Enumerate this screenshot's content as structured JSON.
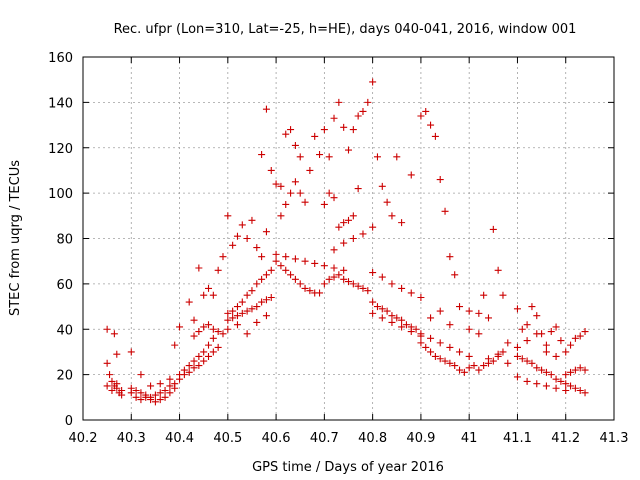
{
  "chart_data": {
    "type": "scatter",
    "title": "Rec. ufpr (Lon=310, Lat=-25, h=HE), days 040-041, 2016, window 001",
    "xlabel": "GPS time / Days of year 2016",
    "ylabel": "STEC from uqrg / TECUs",
    "xlim": [
      40.2,
      41.3
    ],
    "ylim": [
      0,
      160
    ],
    "x_ticks": [
      "40.2",
      "40.3",
      "40.4",
      "40.5",
      "40.6",
      "40.7",
      "40.8",
      "40.9",
      "41",
      "41.1",
      "41.2",
      "41.3"
    ],
    "y_ticks": [
      "0",
      "20",
      "40",
      "60",
      "80",
      "100",
      "120",
      "140",
      "160"
    ],
    "grid": true,
    "marker": "plus",
    "color": "#cc0000",
    "series": [
      {
        "points": [
          [
            40.25,
            40
          ],
          [
            40.265,
            38
          ],
          [
            40.27,
            29
          ],
          [
            40.3,
            30
          ],
          [
            40.25,
            25
          ],
          [
            40.255,
            20
          ],
          [
            40.26,
            17
          ],
          [
            40.265,
            15
          ],
          [
            40.27,
            14
          ],
          [
            40.275,
            12
          ],
          [
            40.28,
            13
          ],
          [
            40.25,
            15
          ],
          [
            40.26,
            13
          ],
          [
            40.27,
            16
          ],
          [
            40.28,
            11
          ],
          [
            40.3,
            12
          ],
          [
            40.31,
            10
          ],
          [
            40.32,
            9
          ],
          [
            40.33,
            10
          ],
          [
            40.34,
            9
          ],
          [
            40.35,
            8
          ],
          [
            40.36,
            9
          ],
          [
            40.37,
            10
          ],
          [
            40.38,
            12
          ],
          [
            40.39,
            14
          ],
          [
            40.3,
            14
          ],
          [
            40.31,
            13
          ],
          [
            40.32,
            12
          ],
          [
            40.33,
            11
          ],
          [
            40.34,
            10
          ],
          [
            40.35,
            11
          ],
          [
            40.36,
            12
          ],
          [
            40.37,
            13
          ],
          [
            40.38,
            15
          ],
          [
            40.39,
            16
          ],
          [
            40.32,
            20
          ],
          [
            40.34,
            15
          ],
          [
            40.36,
            16
          ],
          [
            40.38,
            18
          ],
          [
            40.39,
            33
          ],
          [
            40.4,
            41
          ],
          [
            40.4,
            20
          ],
          [
            40.41,
            22
          ],
          [
            40.42,
            24
          ],
          [
            40.43,
            26
          ],
          [
            40.44,
            28
          ],
          [
            40.45,
            30
          ],
          [
            40.46,
            33
          ],
          [
            40.47,
            36
          ],
          [
            40.4,
            18
          ],
          [
            40.41,
            20
          ],
          [
            40.42,
            21
          ],
          [
            40.43,
            23
          ],
          [
            40.44,
            24
          ],
          [
            40.45,
            26
          ],
          [
            40.46,
            28
          ],
          [
            40.47,
            30
          ],
          [
            40.48,
            32
          ],
          [
            40.42,
            52
          ],
          [
            40.43,
            44
          ],
          [
            40.44,
            67
          ],
          [
            40.45,
            55
          ],
          [
            40.46,
            58
          ],
          [
            40.47,
            55
          ],
          [
            40.48,
            66
          ],
          [
            40.49,
            72
          ],
          [
            40.43,
            37
          ],
          [
            40.44,
            39
          ],
          [
            40.45,
            41
          ],
          [
            40.46,
            42
          ],
          [
            40.47,
            40
          ],
          [
            40.48,
            39
          ],
          [
            40.49,
            38
          ],
          [
            40.5,
            90
          ],
          [
            40.51,
            77
          ],
          [
            40.52,
            81
          ],
          [
            40.53,
            86
          ],
          [
            40.54,
            80
          ],
          [
            40.55,
            88
          ],
          [
            40.56,
            76
          ],
          [
            40.57,
            72
          ],
          [
            40.58,
            83
          ],
          [
            40.5,
            47
          ],
          [
            40.51,
            48
          ],
          [
            40.52,
            50
          ],
          [
            40.53,
            52
          ],
          [
            40.54,
            55
          ],
          [
            40.55,
            57
          ],
          [
            40.56,
            60
          ],
          [
            40.57,
            62
          ],
          [
            40.58,
            64
          ],
          [
            40.59,
            66
          ],
          [
            40.5,
            44
          ],
          [
            40.51,
            45
          ],
          [
            40.52,
            46
          ],
          [
            40.53,
            47
          ],
          [
            40.54,
            48
          ],
          [
            40.55,
            49
          ],
          [
            40.56,
            50
          ],
          [
            40.57,
            52
          ],
          [
            40.58,
            53
          ],
          [
            40.59,
            54
          ],
          [
            40.5,
            40
          ],
          [
            40.52,
            42
          ],
          [
            40.54,
            38
          ],
          [
            40.56,
            43
          ],
          [
            40.58,
            46
          ],
          [
            40.57,
            117
          ],
          [
            40.58,
            137
          ],
          [
            40.59,
            110
          ],
          [
            40.6,
            104
          ],
          [
            40.61,
            103
          ],
          [
            40.62,
            126
          ],
          [
            40.63,
            128
          ],
          [
            40.64,
            121
          ],
          [
            40.65,
            116
          ],
          [
            40.6,
            70
          ],
          [
            40.61,
            68
          ],
          [
            40.62,
            66
          ],
          [
            40.63,
            64
          ],
          [
            40.64,
            62
          ],
          [
            40.65,
            60
          ],
          [
            40.66,
            58
          ],
          [
            40.67,
            57
          ],
          [
            40.68,
            56
          ],
          [
            40.69,
            56
          ],
          [
            40.6,
            73
          ],
          [
            40.62,
            72
          ],
          [
            40.64,
            71
          ],
          [
            40.66,
            70
          ],
          [
            40.68,
            69
          ],
          [
            40.7,
            68
          ],
          [
            40.72,
            67
          ],
          [
            40.74,
            66
          ],
          [
            40.61,
            90
          ],
          [
            40.62,
            95
          ],
          [
            40.63,
            100
          ],
          [
            40.64,
            105
          ],
          [
            40.65,
            100
          ],
          [
            40.66,
            96
          ],
          [
            40.67,
            110
          ],
          [
            40.68,
            125
          ],
          [
            40.69,
            117
          ],
          [
            40.7,
            128
          ],
          [
            40.71,
            116
          ],
          [
            40.72,
            133
          ],
          [
            40.73,
            140
          ],
          [
            40.74,
            129
          ],
          [
            40.75,
            119
          ],
          [
            40.76,
            128
          ],
          [
            40.77,
            134
          ],
          [
            40.7,
            95
          ],
          [
            40.71,
            100
          ],
          [
            40.72,
            98
          ],
          [
            40.73,
            85
          ],
          [
            40.74,
            87
          ],
          [
            40.75,
            88
          ],
          [
            40.76,
            90
          ],
          [
            40.77,
            102
          ],
          [
            40.7,
            60
          ],
          [
            40.71,
            62
          ],
          [
            40.72,
            63
          ],
          [
            40.73,
            64
          ],
          [
            40.74,
            62
          ],
          [
            40.75,
            61
          ],
          [
            40.76,
            60
          ],
          [
            40.77,
            59
          ],
          [
            40.78,
            58
          ],
          [
            40.79,
            57
          ],
          [
            40.72,
            75
          ],
          [
            40.74,
            78
          ],
          [
            40.76,
            80
          ],
          [
            40.78,
            82
          ],
          [
            40.8,
            85
          ],
          [
            40.78,
            136
          ],
          [
            40.79,
            140
          ],
          [
            40.8,
            149
          ],
          [
            40.81,
            116
          ],
          [
            40.82,
            103
          ],
          [
            40.83,
            96
          ],
          [
            40.84,
            90
          ],
          [
            40.85,
            116
          ],
          [
            40.86,
            87
          ],
          [
            40.8,
            52
          ],
          [
            40.81,
            50
          ],
          [
            40.82,
            49
          ],
          [
            40.83,
            48
          ],
          [
            40.84,
            46
          ],
          [
            40.85,
            45
          ],
          [
            40.86,
            44
          ],
          [
            40.87,
            42
          ],
          [
            40.88,
            41
          ],
          [
            40.89,
            40
          ],
          [
            40.8,
            47
          ],
          [
            40.82,
            45
          ],
          [
            40.84,
            43
          ],
          [
            40.86,
            41
          ],
          [
            40.88,
            39
          ],
          [
            40.9,
            37
          ],
          [
            40.8,
            65
          ],
          [
            40.82,
            63
          ],
          [
            40.84,
            60
          ],
          [
            40.86,
            58
          ],
          [
            40.88,
            56
          ],
          [
            40.9,
            54
          ],
          [
            40.88,
            108
          ],
          [
            40.9,
            134
          ],
          [
            40.91,
            136
          ],
          [
            40.92,
            130
          ],
          [
            40.93,
            125
          ],
          [
            40.94,
            106
          ],
          [
            40.95,
            92
          ],
          [
            40.96,
            72
          ],
          [
            40.97,
            64
          ],
          [
            40.9,
            34
          ],
          [
            40.91,
            32
          ],
          [
            40.92,
            30
          ],
          [
            40.93,
            28
          ],
          [
            40.94,
            27
          ],
          [
            40.95,
            26
          ],
          [
            40.96,
            25
          ],
          [
            40.97,
            24
          ],
          [
            40.98,
            22
          ],
          [
            40.99,
            21
          ],
          [
            40.9,
            38
          ],
          [
            40.92,
            36
          ],
          [
            40.94,
            34
          ],
          [
            40.96,
            32
          ],
          [
            40.98,
            30
          ],
          [
            41.0,
            28
          ],
          [
            40.92,
            45
          ],
          [
            40.94,
            48
          ],
          [
            40.96,
            42
          ],
          [
            40.98,
            50
          ],
          [
            41.0,
            40
          ],
          [
            41.0,
            23
          ],
          [
            41.01,
            24
          ],
          [
            41.02,
            22
          ],
          [
            41.03,
            24
          ],
          [
            41.04,
            25
          ],
          [
            41.05,
            26
          ],
          [
            41.06,
            28
          ],
          [
            41.07,
            30
          ],
          [
            41.02,
            38
          ],
          [
            41.03,
            55
          ],
          [
            41.04,
            45
          ],
          [
            41.05,
            84
          ],
          [
            41.06,
            66
          ],
          [
            41.07,
            55
          ],
          [
            41.08,
            34
          ],
          [
            41.0,
            48
          ],
          [
            41.02,
            47
          ],
          [
            41.04,
            27
          ],
          [
            41.06,
            29
          ],
          [
            41.08,
            25
          ],
          [
            41.1,
            28
          ],
          [
            41.11,
            27
          ],
          [
            41.12,
            26
          ],
          [
            41.13,
            25
          ],
          [
            41.14,
            23
          ],
          [
            41.15,
            22
          ],
          [
            41.16,
            21
          ],
          [
            41.17,
            20
          ],
          [
            41.18,
            18
          ],
          [
            41.19,
            17
          ],
          [
            41.1,
            49
          ],
          [
            41.11,
            40
          ],
          [
            41.12,
            42
          ],
          [
            41.13,
            50
          ],
          [
            41.14,
            46
          ],
          [
            41.15,
            38
          ],
          [
            41.16,
            30
          ],
          [
            41.17,
            39
          ],
          [
            41.18,
            41
          ],
          [
            41.19,
            35
          ],
          [
            41.1,
            32
          ],
          [
            41.12,
            35
          ],
          [
            41.14,
            38
          ],
          [
            41.16,
            33
          ],
          [
            41.18,
            28
          ],
          [
            41.1,
            19
          ],
          [
            41.12,
            17
          ],
          [
            41.14,
            16
          ],
          [
            41.16,
            15
          ],
          [
            41.18,
            14
          ],
          [
            41.2,
            13
          ],
          [
            41.2,
            16
          ],
          [
            41.21,
            15
          ],
          [
            41.22,
            14
          ],
          [
            41.23,
            13
          ],
          [
            41.24,
            12
          ],
          [
            41.2,
            30
          ],
          [
            41.21,
            33
          ],
          [
            41.22,
            36
          ],
          [
            41.23,
            37
          ],
          [
            41.24,
            39
          ],
          [
            41.2,
            20
          ],
          [
            41.21,
            21
          ],
          [
            41.22,
            22
          ],
          [
            41.23,
            23
          ],
          [
            41.24,
            22
          ]
        ]
      }
    ]
  }
}
